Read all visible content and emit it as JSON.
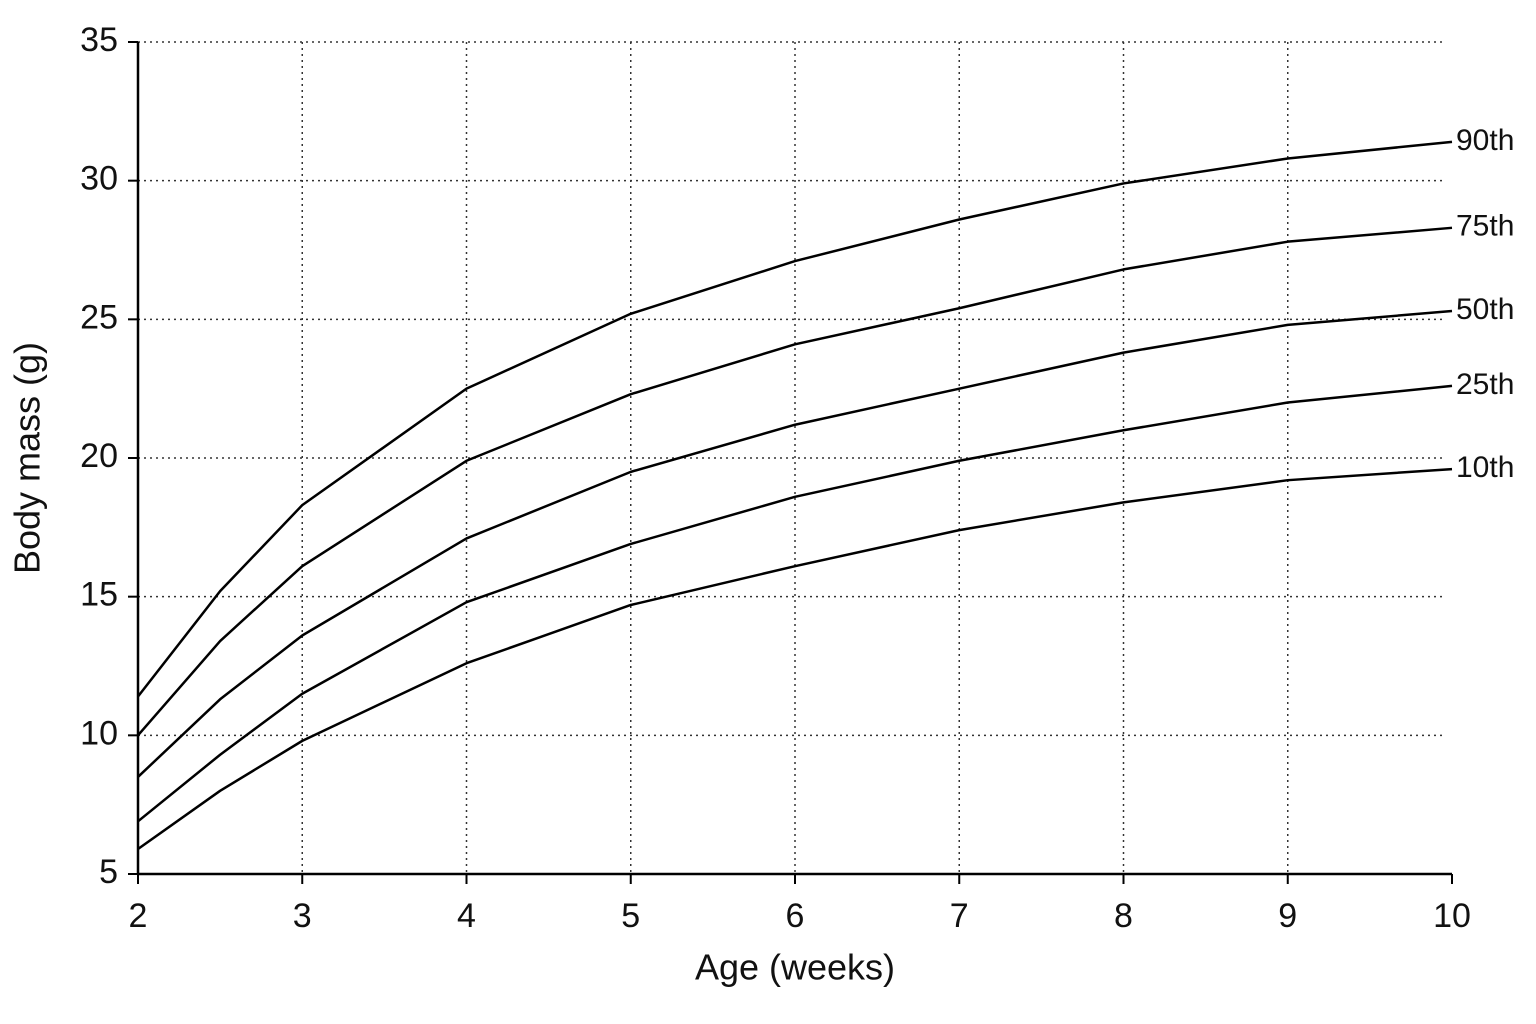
{
  "chart_data": {
    "type": "line",
    "xlabel": "Age (weeks)",
    "ylabel": "Body mass (g)",
    "x": [
      2,
      2.5,
      3,
      4,
      5,
      6,
      7,
      8,
      9,
      10
    ],
    "series": [
      {
        "name": "90th",
        "color": "#000000",
        "values": [
          11.4,
          15.2,
          18.3,
          22.5,
          25.2,
          27.1,
          28.6,
          29.9,
          30.8,
          31.4
        ]
      },
      {
        "name": "75th",
        "color": "#000000",
        "values": [
          10.0,
          13.4,
          16.1,
          19.9,
          22.3,
          24.1,
          25.4,
          26.8,
          27.8,
          28.3
        ]
      },
      {
        "name": "50th",
        "color": "#000000",
        "values": [
          8.5,
          11.3,
          13.6,
          17.1,
          19.5,
          21.2,
          22.5,
          23.8,
          24.8,
          25.3
        ]
      },
      {
        "name": "25th",
        "color": "#000000",
        "values": [
          6.9,
          9.3,
          11.5,
          14.8,
          16.9,
          18.6,
          19.9,
          21.0,
          22.0,
          22.6
        ]
      },
      {
        "name": "10th",
        "color": "#000000",
        "values": [
          5.9,
          8.0,
          9.8,
          12.6,
          14.7,
          16.1,
          17.4,
          18.4,
          19.2,
          19.6
        ]
      }
    ],
    "xlim": [
      2,
      10
    ],
    "xticks": [
      2,
      3,
      4,
      5,
      6,
      7,
      8,
      9,
      10
    ],
    "ylim": [
      5,
      35
    ],
    "yticks": [
      5,
      10,
      15,
      20,
      25,
      30,
      35
    ],
    "grid": true
  }
}
